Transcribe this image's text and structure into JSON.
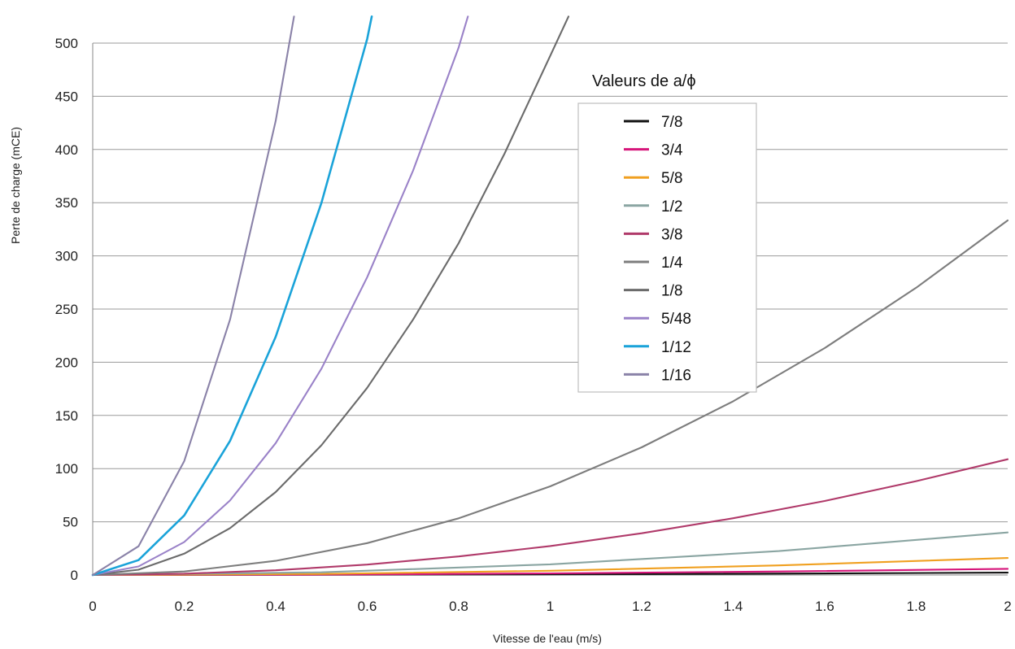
{
  "chart_data": {
    "type": "line",
    "xlabel": "Vitesse de l'eau (m/s)",
    "ylabel": "Perte de charge (mCE)",
    "xlim": [
      0,
      2
    ],
    "ylim": [
      0,
      500
    ],
    "x_ticks": [
      "0",
      "0.2",
      "0.4",
      "0.6",
      "0.8",
      "1",
      "1.2",
      "1.4",
      "1.6",
      "1.8",
      "2"
    ],
    "y_ticks": [
      "0",
      "50",
      "100",
      "150",
      "200",
      "250",
      "300",
      "350",
      "400",
      "450",
      "500"
    ],
    "grid": "horizontal",
    "legend_title": "Valeurs de a/ϕ",
    "legend_position": "top-right",
    "series": [
      {
        "name": "7/8",
        "color": "#111111",
        "x": [
          0,
          0.5,
          1,
          1.5,
          2
        ],
        "y": [
          0,
          0.2,
          0.6,
          1.3,
          2.2
        ]
      },
      {
        "name": "3/4",
        "color": "#d6157a",
        "x": [
          0,
          0.5,
          1,
          1.5,
          2
        ],
        "y": [
          0,
          0.4,
          1.5,
          3.3,
          5.8
        ]
      },
      {
        "name": "5/8",
        "color": "#f0a020",
        "x": [
          0,
          0.5,
          1,
          1.5,
          2
        ],
        "y": [
          0,
          1,
          4,
          9,
          16
        ]
      },
      {
        "name": "1/2",
        "color": "#8aa5a2",
        "x": [
          0,
          0.5,
          1,
          1.5,
          2
        ],
        "y": [
          0,
          2.5,
          10,
          22.5,
          40
        ]
      },
      {
        "name": "3/8",
        "color": "#b03a6a",
        "x": [
          0,
          0.2,
          0.4,
          0.6,
          0.8,
          1,
          1.2,
          1.4,
          1.6,
          1.8,
          2
        ],
        "y": [
          0,
          1.2,
          4.4,
          9.8,
          17.4,
          27.2,
          39.2,
          53.4,
          69.6,
          88.2,
          108.8
        ]
      },
      {
        "name": "1/4",
        "color": "#7d7d7d",
        "x": [
          0,
          0.2,
          0.4,
          0.6,
          0.8,
          1,
          1.2,
          1.4,
          1.6,
          1.8,
          2
        ],
        "y": [
          0,
          3.3,
          13.3,
          30,
          53.3,
          83.3,
          120,
          163.3,
          213.3,
          270,
          333.3
        ]
      },
      {
        "name": "1/8",
        "color": "#6b6b6b",
        "x": [
          0,
          0.1,
          0.2,
          0.3,
          0.4,
          0.5,
          0.6,
          0.7,
          0.8,
          0.9,
          1,
          1.04
        ],
        "y": [
          0,
          5,
          20,
          44,
          78,
          122,
          176,
          240,
          312,
          396,
          488,
          525
        ]
      },
      {
        "name": "5/48",
        "color": "#9a82c8",
        "x": [
          0,
          0.1,
          0.2,
          0.3,
          0.4,
          0.5,
          0.6,
          0.7,
          0.8,
          0.82
        ],
        "y": [
          0,
          8,
          31,
          70,
          124,
          194,
          280,
          380,
          496,
          525
        ]
      },
      {
        "name": "1/12",
        "color": "#1aa3d9",
        "x": [
          0,
          0.1,
          0.2,
          0.3,
          0.4,
          0.5,
          0.6,
          0.61
        ],
        "y": [
          0,
          14,
          56,
          126,
          224,
          350,
          504,
          525
        ]
      },
      {
        "name": "1/16",
        "color": "#8a82a8",
        "x": [
          0,
          0.1,
          0.2,
          0.3,
          0.4,
          0.44
        ],
        "y": [
          0,
          27,
          107,
          240,
          427,
          525
        ]
      }
    ]
  }
}
